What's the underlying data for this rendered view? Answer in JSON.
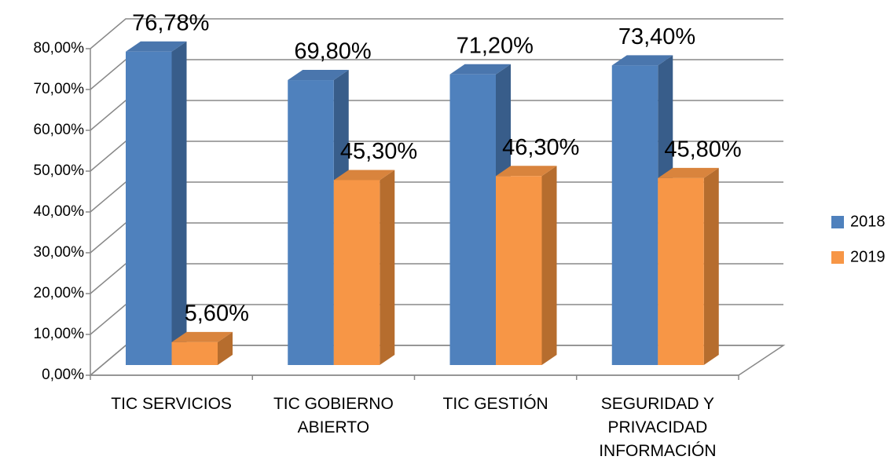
{
  "chart_data": {
    "type": "bar3d",
    "categories": [
      "TIC SERVICIOS",
      "TIC GOBIERNO ABIERTO",
      "TIC GESTIÓN",
      "SEGURIDAD Y PRIVACIDAD INFORMACIÓN"
    ],
    "series": [
      {
        "name": "2018",
        "color": "#4f81bd",
        "values": [
          76.78,
          69.8,
          71.2,
          73.4
        ],
        "value_labels": [
          "76,78%",
          "69,80%",
          "71,20%",
          "73,40%"
        ]
      },
      {
        "name": "2019",
        "color": "#f79646",
        "values": [
          5.6,
          45.3,
          46.3,
          45.8
        ],
        "value_labels": [
          "5,60%",
          "45,30%",
          "46,30%",
          "45,80%"
        ]
      }
    ],
    "ylim": [
      0,
      80
    ],
    "yticks": [
      {
        "value": 0,
        "label": "0,00%"
      },
      {
        "value": 10,
        "label": "10,00%"
      },
      {
        "value": 20,
        "label": "20,00%"
      },
      {
        "value": 30,
        "label": "30,00%"
      },
      {
        "value": 40,
        "label": "40,00%"
      },
      {
        "value": 50,
        "label": "50,00%"
      },
      {
        "value": 60,
        "label": "60,00%"
      },
      {
        "value": 70,
        "label": "70,00%"
      },
      {
        "value": 80,
        "label": "80,00%"
      }
    ],
    "grid": true,
    "legend": "right"
  }
}
